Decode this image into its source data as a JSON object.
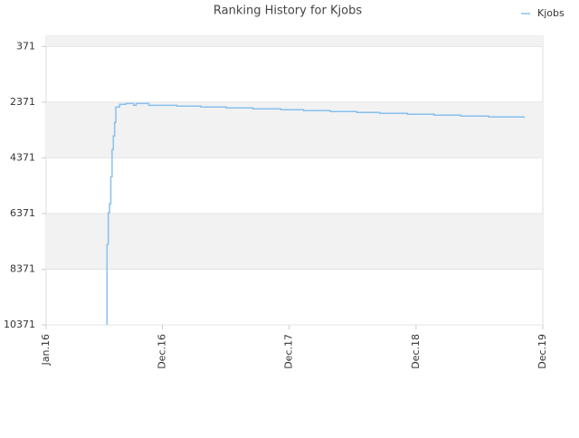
{
  "chart_data": {
    "type": "line",
    "title": "Ranking History for Kjobs",
    "step": true,
    "grid": true,
    "bands": true,
    "legend": "top-right",
    "series": [
      {
        "name": "Kjobs",
        "color": "#88c0ee",
        "x": [
          2016.48,
          2016.49,
          2016.5,
          2016.51,
          2016.52,
          2016.53,
          2016.54,
          2016.55,
          2016.58,
          2016.63,
          2016.69,
          2016.71,
          2016.81,
          2017.03,
          2017.22,
          2017.42,
          2017.63,
          2017.85,
          2018.03,
          2018.24,
          2018.45,
          2018.63,
          2018.85,
          2019.06,
          2019.27,
          2019.49,
          2019.77
        ],
        "values": [
          7481,
          6345,
          6021,
          5047,
          4073,
          3585,
          3098,
          2546,
          2449,
          2417,
          2482,
          2417,
          2482,
          2514,
          2546,
          2579,
          2611,
          2644,
          2676,
          2709,
          2741,
          2774,
          2806,
          2839,
          2871,
          2903,
          2936
        ]
      }
    ],
    "start_value": 10371,
    "xlim": [
      2016.0,
      2019.917
    ],
    "xticks": [
      {
        "value": 2016.0,
        "label": "Jan.16"
      },
      {
        "value": 2016.917,
        "label": "Dec.16"
      },
      {
        "value": 2017.917,
        "label": "Dec.17"
      },
      {
        "value": 2018.917,
        "label": "Dec.18"
      },
      {
        "value": 2019.917,
        "label": "Dec.19"
      }
    ],
    "ylim": [
      10371,
      1
    ],
    "yticks": [
      371,
      2371,
      4371,
      6371,
      8371,
      10371
    ]
  }
}
